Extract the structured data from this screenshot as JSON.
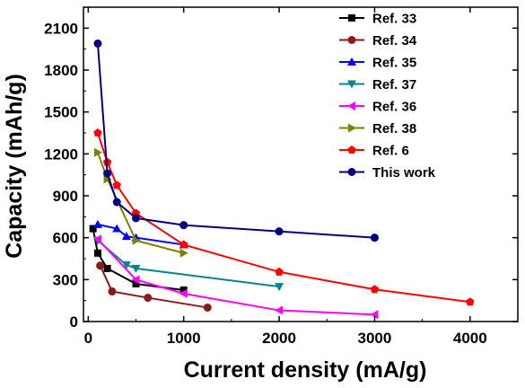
{
  "chart_data": {
    "type": "line",
    "xlabel": "Current density (mA/g)",
    "ylabel": "Capacity (mAh/g)",
    "xlim": [
      -50,
      4500
    ],
    "ylim": [
      0,
      2250
    ],
    "xticks": [
      0,
      1000,
      2000,
      3000,
      4000
    ],
    "yticks": [
      0,
      300,
      600,
      900,
      1200,
      1500,
      1800,
      2100
    ],
    "grid": false,
    "legend_position": "top-right",
    "series": [
      {
        "name": "Ref. 33",
        "color": "#000000",
        "marker": "square",
        "x": [
          50,
          100,
          200,
          500,
          1000
        ],
        "y": [
          665,
          490,
          380,
          270,
          225
        ]
      },
      {
        "name": "Ref. 34",
        "color": "#8b1a1a",
        "marker": "circle",
        "x": [
          125,
          250,
          625,
          1250
        ],
        "y": [
          400,
          215,
          170,
          100
        ]
      },
      {
        "name": "Ref. 35",
        "color": "#0000ff",
        "marker": "triangle-up",
        "x": [
          100,
          300,
          400,
          500,
          1000
        ],
        "y": [
          695,
          665,
          610,
          600,
          550
        ]
      },
      {
        "name": "Ref. 37",
        "color": "#00868b",
        "marker": "triangle-down",
        "x": [
          100,
          400,
          500,
          2000
        ],
        "y": [
          580,
          405,
          380,
          250
        ]
      },
      {
        "name": "Ref. 36",
        "color": "#ff00ff",
        "marker": "triangle-left",
        "x": [
          100,
          500,
          1000,
          2000,
          3000
        ],
        "y": [
          590,
          300,
          200,
          80,
          50
        ]
      },
      {
        "name": "Ref. 38",
        "color": "#808000",
        "marker": "triangle-right",
        "x": [
          100,
          200,
          500,
          1000
        ],
        "y": [
          1210,
          1020,
          580,
          490
        ]
      },
      {
        "name": "Ref. 6",
        "color": "#ff0000",
        "marker": "pentagon",
        "x": [
          100,
          200,
          300,
          500,
          1000,
          2000,
          3000,
          4000
        ],
        "y": [
          1350,
          1140,
          975,
          775,
          550,
          355,
          230,
          140
        ]
      },
      {
        "name": "This work",
        "color": "#000080",
        "marker": "circle",
        "x": [
          100,
          200,
          300,
          500,
          1000,
          2000,
          3000
        ],
        "y": [
          1990,
          1060,
          855,
          740,
          690,
          645,
          600
        ]
      }
    ]
  }
}
